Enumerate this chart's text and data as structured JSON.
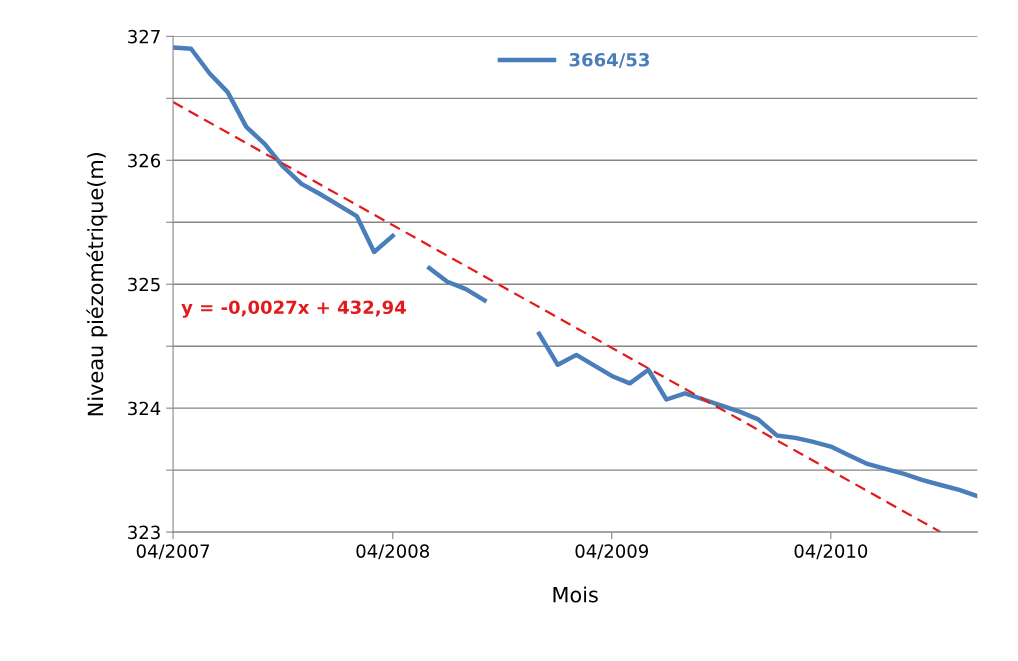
{
  "chart_data": {
    "type": "line",
    "xlabel": "Mois",
    "ylabel": "Niveau piézométrique(m)",
    "x": [
      "2007-04",
      "2007-05",
      "2007-06",
      "2007-07",
      "2007-08",
      "2007-09",
      "2007-10",
      "2007-11",
      "2007-12",
      "2008-01",
      "2008-02",
      "2008-03",
      "2008-04",
      "2008-05",
      "2008-06",
      "2008-07",
      "2008-08",
      "2008-09",
      "2008-10",
      "2008-11",
      "2008-12",
      "2009-01",
      "2009-02",
      "2009-03",
      "2009-04",
      "2009-05",
      "2009-06",
      "2009-07",
      "2009-08",
      "2009-09",
      "2009-10",
      "2009-11",
      "2009-12",
      "2010-01",
      "2010-02",
      "2010-03",
      "2010-04",
      "2010-05",
      "2010-06",
      "2010-07",
      "2010-08",
      "2010-09",
      "2010-10",
      "2010-11",
      "2010-12"
    ],
    "series": [
      {
        "name": "3664/53",
        "color": "#4a7ebb",
        "values": [
          326.91,
          326.9,
          326.7,
          326.55,
          326.27,
          326.13,
          325.95,
          325.81,
          325.73,
          325.64,
          325.55,
          325.26,
          325.39,
          null,
          325.13,
          325.02,
          324.96,
          324.87,
          null,
          null,
          324.6,
          324.35,
          324.43,
          324.35,
          324.26,
          324.2,
          324.31,
          324.07,
          324.12,
          324.07,
          324.02,
          323.97,
          323.91,
          323.78,
          323.76,
          323.73,
          323.69,
          323.62,
          323.55,
          323.51,
          323.47,
          323.42,
          323.38,
          323.34,
          323.29
        ]
      },
      {
        "type": "line",
        "color": "#e31a1c",
        "line_style": "dashed",
        "x": [
          "2007-04",
          "2010-10"
        ],
        "values": [
          326.47,
          323.0
        ]
      }
    ],
    "annotations": [
      "y = -0,0027x + 432,94"
    ],
    "xlim": [
      "2007-04",
      "2010-12"
    ],
    "xticks": [
      {
        "value": "2007-04",
        "label": "04/2007"
      },
      {
        "value": "2008-04",
        "label": "04/2008"
      },
      {
        "value": "2009-04",
        "label": "04/2009"
      },
      {
        "value": "2010-04",
        "label": "04/2010"
      }
    ],
    "ylim": [
      323,
      327
    ],
    "yticks": [
      323,
      {
        "value": 323.5,
        "label": null
      },
      324,
      {
        "value": 324.5,
        "label": null
      },
      325,
      {
        "value": 325.5,
        "label": null
      },
      326,
      {
        "value": 326.5,
        "label": null
      },
      327
    ],
    "grid": "y",
    "legend": "top",
    "line_style": "solid",
    "marker": "none"
  }
}
